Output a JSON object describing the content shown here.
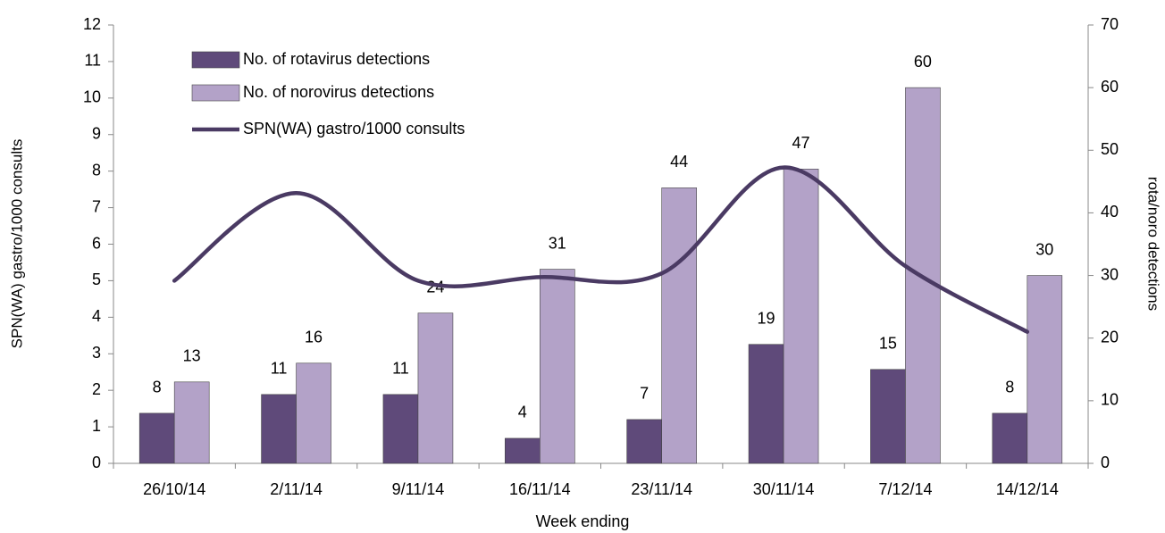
{
  "chart_data": {
    "type": "bar-line",
    "categories": [
      "26/10/14",
      "2/11/14",
      "9/11/14",
      "16/11/14",
      "23/11/14",
      "30/11/14",
      "7/12/14",
      "14/12/14"
    ],
    "series": [
      {
        "name": "No. of rotavirus detections",
        "type": "bar",
        "axis": "y2",
        "color": "#5f4a7a",
        "values": [
          8,
          11,
          11,
          4,
          7,
          19,
          15,
          8
        ]
      },
      {
        "name": "No. of norovirus detections",
        "type": "bar",
        "axis": "y2",
        "color": "#b3a2c8",
        "values": [
          13,
          16,
          24,
          31,
          44,
          47,
          60,
          30
        ]
      },
      {
        "name": "SPN(WA) gastro/1000 consults",
        "type": "line",
        "axis": "y",
        "color": "#4a3a63",
        "values": [
          5.0,
          7.4,
          5.0,
          5.1,
          5.2,
          8.1,
          5.4,
          3.6
        ]
      }
    ],
    "xlabel": "Week ending",
    "ylabel": "SPN(WA) gastro/1000 consults",
    "y2label": "rota/noro detections",
    "ylim": [
      0,
      12
    ],
    "yticks": [
      0,
      1,
      2,
      3,
      4,
      5,
      6,
      7,
      8,
      9,
      10,
      11,
      12
    ],
    "y2lim": [
      0,
      70
    ],
    "y2ticks": [
      0,
      10,
      20,
      30,
      40,
      50,
      60,
      70
    ],
    "legend": "upper left",
    "grid": false
  }
}
